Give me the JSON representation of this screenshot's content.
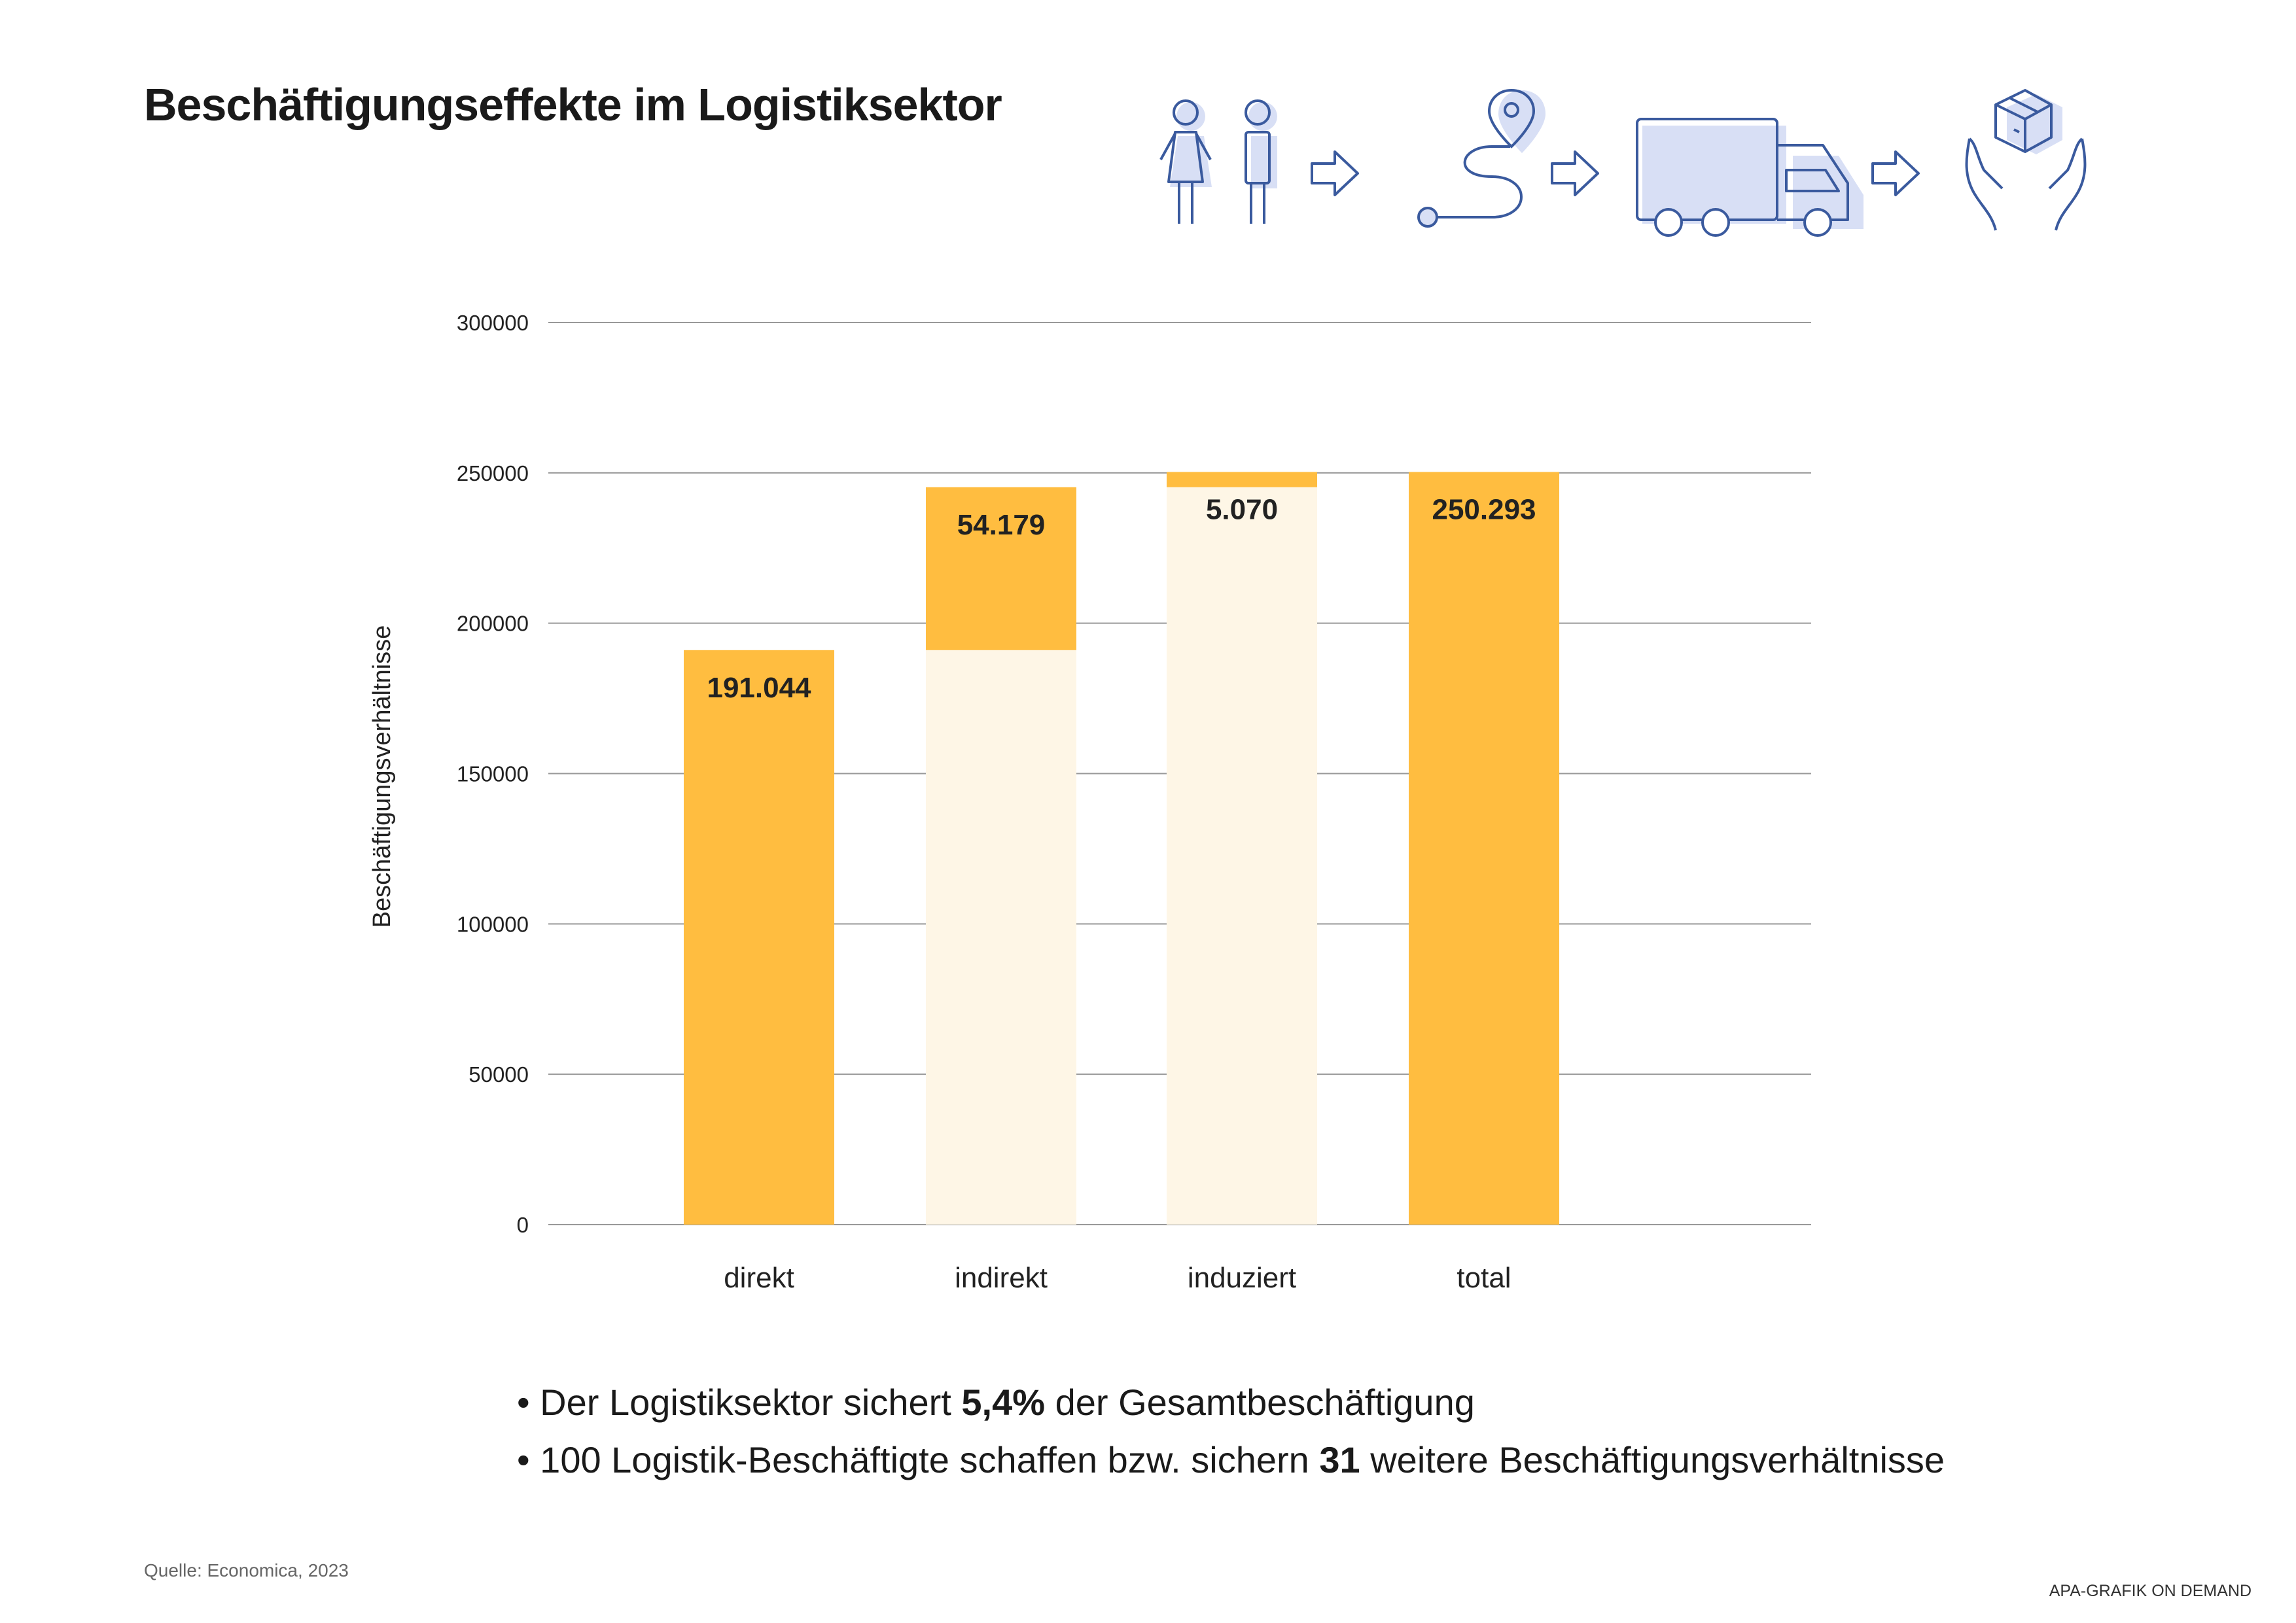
{
  "title": "Beschäftigungseffekte im Logistiksektor",
  "icons": [
    "people-icon",
    "arrow-right-icon",
    "route-pin-icon",
    "arrow-right-icon",
    "truck-icon",
    "arrow-right-icon",
    "hands-package-icon"
  ],
  "colors": {
    "bar": "#ffbd40",
    "base": "#fef6e6",
    "grid": "#999999",
    "icon_stroke": "#3a5a9e",
    "icon_fill": "#d8dff5"
  },
  "chart_data": {
    "type": "bar",
    "subtype": "waterfall",
    "categories": [
      "direkt",
      "indirekt",
      "induziert",
      "total"
    ],
    "values": [
      191044,
      54179,
      5070,
      250293
    ],
    "bases": [
      0,
      191044,
      245223,
      0
    ],
    "data_labels": [
      "191.044",
      "54.179",
      "5.070",
      "250.293"
    ],
    "ylabel": "Beschäftigungsverhältnisse",
    "ylim": [
      0,
      300000
    ],
    "yticks": [
      0,
      50000,
      100000,
      150000,
      200000,
      250000,
      300000
    ],
    "ytick_labels": [
      "0",
      "50000",
      "100000",
      "150000",
      "200000",
      "250000",
      "300000"
    ],
    "grid": true,
    "legend": "none"
  },
  "notes": [
    {
      "bullet": "•",
      "pre": "Der Logistiksektor sichert ",
      "bold": "5,4%",
      "post": " der Gesamtbeschäftigung"
    },
    {
      "bullet": "•",
      "pre": "100 Logistik-Beschäftigte schaffen bzw. sichern ",
      "bold": "31",
      "post": " weitere Beschäftigungsverhältnisse"
    }
  ],
  "source": "Quelle: Economica, 2023",
  "credit": "APA-GRAFIK ON DEMAND"
}
